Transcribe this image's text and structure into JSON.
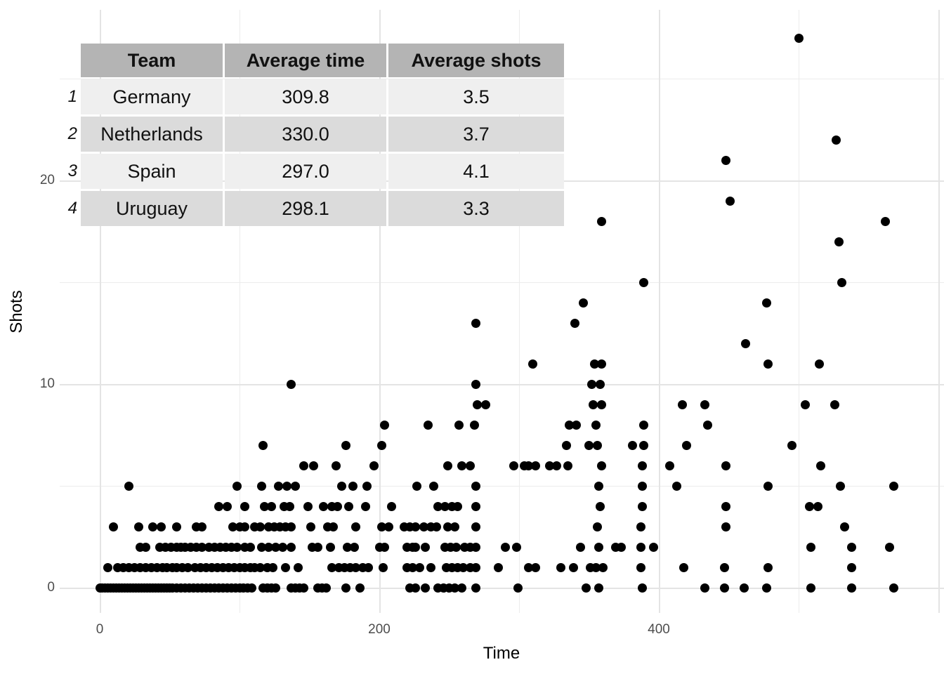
{
  "colors": {
    "dot": "#000000",
    "gridline_major": "#e4e4e4",
    "gridline_minor": "#ececec",
    "tick_label": "#4d4d4d",
    "axis_title": "#000000",
    "table_header_bg": "#b4b4b4",
    "table_row_light": "#efefef",
    "table_row_dark": "#dbdbdb",
    "background": "#ffffff"
  },
  "table": {
    "columns": [
      "Team",
      "Average time",
      "Average shots"
    ],
    "rows": [
      {
        "index": "1",
        "cells": [
          "Germany",
          "309.8",
          "3.5"
        ]
      },
      {
        "index": "2",
        "cells": [
          "Netherlands",
          "330.0",
          "3.7"
        ]
      },
      {
        "index": "3",
        "cells": [
          "Spain",
          "297.0",
          "4.1"
        ]
      },
      {
        "index": "4",
        "cells": [
          "Uruguay",
          "298.1",
          "3.3"
        ]
      }
    ]
  },
  "chart_data": {
    "type": "scatter",
    "title": "",
    "xlabel": "Time",
    "ylabel": "Shots",
    "x_major_ticks": [
      0,
      200,
      400
    ],
    "x_major_gridlines": [
      0,
      200,
      400,
      600
    ],
    "x_minor_gridlines": [
      100,
      300,
      500
    ],
    "y_major_ticks": [
      0,
      10,
      20
    ],
    "y_major_gridlines": [
      0,
      10,
      20
    ],
    "y_minor_gridlines": [
      5,
      15,
      25
    ],
    "xlim": [
      -28,
      604
    ],
    "ylim": [
      -1.2,
      28.3
    ],
    "grid": true,
    "legend": false,
    "points": [
      [
        0,
        0
      ],
      [
        2,
        0
      ],
      [
        4,
        0
      ],
      [
        6,
        0
      ],
      [
        8,
        0
      ],
      [
        10,
        0
      ],
      [
        12,
        0
      ],
      [
        14,
        0
      ],
      [
        16,
        0
      ],
      [
        18,
        0
      ],
      [
        20,
        0
      ],
      [
        22,
        0
      ],
      [
        24,
        0
      ],
      [
        26,
        0
      ],
      [
        28,
        0
      ],
      [
        30,
        0
      ],
      [
        32,
        0
      ],
      [
        34,
        0
      ],
      [
        36,
        0
      ],
      [
        38,
        0
      ],
      [
        40,
        0
      ],
      [
        42,
        0
      ],
      [
        44,
        0
      ],
      [
        46,
        0
      ],
      [
        48,
        0
      ],
      [
        50,
        0
      ],
      [
        52,
        0
      ],
      [
        55,
        0
      ],
      [
        58,
        0
      ],
      [
        61,
        0
      ],
      [
        64,
        0
      ],
      [
        67,
        0
      ],
      [
        70,
        0
      ],
      [
        73,
        0
      ],
      [
        76,
        0
      ],
      [
        79,
        0
      ],
      [
        82,
        0
      ],
      [
        85,
        0
      ],
      [
        88,
        0
      ],
      [
        91,
        0
      ],
      [
        94,
        0
      ],
      [
        97,
        0
      ],
      [
        100,
        0
      ],
      [
        103,
        0
      ],
      [
        106,
        0
      ],
      [
        109,
        0
      ],
      [
        117,
        0
      ],
      [
        120,
        0
      ],
      [
        123,
        0
      ],
      [
        126,
        0
      ],
      [
        137,
        0
      ],
      [
        140,
        0
      ],
      [
        143,
        0
      ],
      [
        146,
        0
      ],
      [
        156,
        0
      ],
      [
        159,
        0
      ],
      [
        162,
        0
      ],
      [
        176,
        0
      ],
      [
        186,
        0
      ],
      [
        222,
        0
      ],
      [
        226,
        0
      ],
      [
        233,
        0
      ],
      [
        242,
        0
      ],
      [
        246,
        0
      ],
      [
        250,
        0
      ],
      [
        254,
        0
      ],
      [
        259,
        0
      ],
      [
        269,
        0
      ],
      [
        299,
        0
      ],
      [
        348,
        0
      ],
      [
        357,
        0
      ],
      [
        388,
        0
      ],
      [
        433,
        0
      ],
      [
        447,
        0
      ],
      [
        461,
        0
      ],
      [
        477,
        0
      ],
      [
        509,
        0
      ],
      [
        538,
        0
      ],
      [
        568,
        0
      ],
      [
        6,
        1
      ],
      [
        13,
        1
      ],
      [
        17,
        1
      ],
      [
        21,
        1
      ],
      [
        25,
        1
      ],
      [
        29,
        1
      ],
      [
        33,
        1
      ],
      [
        37,
        1
      ],
      [
        41,
        1
      ],
      [
        45,
        1
      ],
      [
        48,
        1
      ],
      [
        52,
        1
      ],
      [
        55,
        1
      ],
      [
        59,
        1
      ],
      [
        63,
        1
      ],
      [
        68,
        1
      ],
      [
        72,
        1
      ],
      [
        76,
        1
      ],
      [
        80,
        1
      ],
      [
        84,
        1
      ],
      [
        88,
        1
      ],
      [
        92,
        1
      ],
      [
        96,
        1
      ],
      [
        100,
        1
      ],
      [
        104,
        1
      ],
      [
        108,
        1
      ],
      [
        111,
        1
      ],
      [
        115,
        1
      ],
      [
        120,
        1
      ],
      [
        124,
        1
      ],
      [
        133,
        1
      ],
      [
        142,
        1
      ],
      [
        166,
        1
      ],
      [
        171,
        1
      ],
      [
        175,
        1
      ],
      [
        179,
        1
      ],
      [
        183,
        1
      ],
      [
        188,
        1
      ],
      [
        192,
        1
      ],
      [
        203,
        1
      ],
      [
        220,
        1
      ],
      [
        224,
        1
      ],
      [
        229,
        1
      ],
      [
        237,
        1
      ],
      [
        248,
        1
      ],
      [
        252,
        1
      ],
      [
        256,
        1
      ],
      [
        260,
        1
      ],
      [
        265,
        1
      ],
      [
        269,
        1
      ],
      [
        285,
        1
      ],
      [
        307,
        1
      ],
      [
        312,
        1
      ],
      [
        330,
        1
      ],
      [
        339,
        1
      ],
      [
        351,
        1
      ],
      [
        355,
        1
      ],
      [
        360,
        1
      ],
      [
        387,
        1
      ],
      [
        418,
        1
      ],
      [
        447,
        1
      ],
      [
        478,
        1
      ],
      [
        538,
        1
      ],
      [
        29,
        2
      ],
      [
        33,
        2
      ],
      [
        43,
        2
      ],
      [
        47,
        2
      ],
      [
        51,
        2
      ],
      [
        55,
        2
      ],
      [
        58,
        2
      ],
      [
        61,
        2
      ],
      [
        65,
        2
      ],
      [
        69,
        2
      ],
      [
        73,
        2
      ],
      [
        78,
        2
      ],
      [
        82,
        2
      ],
      [
        86,
        2
      ],
      [
        90,
        2
      ],
      [
        94,
        2
      ],
      [
        98,
        2
      ],
      [
        104,
        2
      ],
      [
        108,
        2
      ],
      [
        116,
        2
      ],
      [
        121,
        2
      ],
      [
        126,
        2
      ],
      [
        131,
        2
      ],
      [
        137,
        2
      ],
      [
        152,
        2
      ],
      [
        156,
        2
      ],
      [
        165,
        2
      ],
      [
        177,
        2
      ],
      [
        182,
        2
      ],
      [
        200,
        2
      ],
      [
        204,
        2
      ],
      [
        220,
        2
      ],
      [
        224,
        2
      ],
      [
        226,
        2
      ],
      [
        233,
        2
      ],
      [
        247,
        2
      ],
      [
        251,
        2
      ],
      [
        255,
        2
      ],
      [
        261,
        2
      ],
      [
        265,
        2
      ],
      [
        269,
        2
      ],
      [
        290,
        2
      ],
      [
        298,
        2
      ],
      [
        344,
        2
      ],
      [
        357,
        2
      ],
      [
        369,
        2
      ],
      [
        373,
        2
      ],
      [
        387,
        2
      ],
      [
        396,
        2
      ],
      [
        509,
        2
      ],
      [
        538,
        2
      ],
      [
        565,
        2
      ],
      [
        10,
        3
      ],
      [
        28,
        3
      ],
      [
        38,
        3
      ],
      [
        44,
        3
      ],
      [
        55,
        3
      ],
      [
        69,
        3
      ],
      [
        73,
        3
      ],
      [
        95,
        3
      ],
      [
        100,
        3
      ],
      [
        104,
        3
      ],
      [
        111,
        3
      ],
      [
        115,
        3
      ],
      [
        121,
        3
      ],
      [
        125,
        3
      ],
      [
        129,
        3
      ],
      [
        133,
        3
      ],
      [
        137,
        3
      ],
      [
        151,
        3
      ],
      [
        163,
        3
      ],
      [
        167,
        3
      ],
      [
        183,
        3
      ],
      [
        202,
        3
      ],
      [
        207,
        3
      ],
      [
        218,
        3
      ],
      [
        222,
        3
      ],
      [
        226,
        3
      ],
      [
        232,
        3
      ],
      [
        237,
        3
      ],
      [
        241,
        3
      ],
      [
        249,
        3
      ],
      [
        254,
        3
      ],
      [
        269,
        3
      ],
      [
        356,
        3
      ],
      [
        387,
        3
      ],
      [
        448,
        3
      ],
      [
        533,
        3
      ],
      [
        85,
        4
      ],
      [
        91,
        4
      ],
      [
        104,
        4
      ],
      [
        118,
        4
      ],
      [
        123,
        4
      ],
      [
        132,
        4
      ],
      [
        136,
        4
      ],
      [
        149,
        4
      ],
      [
        160,
        4
      ],
      [
        166,
        4
      ],
      [
        170,
        4
      ],
      [
        178,
        4
      ],
      [
        190,
        4
      ],
      [
        209,
        4
      ],
      [
        242,
        4
      ],
      [
        247,
        4
      ],
      [
        252,
        4
      ],
      [
        256,
        4
      ],
      [
        269,
        4
      ],
      [
        358,
        4
      ],
      [
        388,
        4
      ],
      [
        448,
        4
      ],
      [
        508,
        4
      ],
      [
        514,
        4
      ],
      [
        21,
        5
      ],
      [
        98,
        5
      ],
      [
        116,
        5
      ],
      [
        128,
        5
      ],
      [
        134,
        5
      ],
      [
        140,
        5
      ],
      [
        173,
        5
      ],
      [
        181,
        5
      ],
      [
        191,
        5
      ],
      [
        227,
        5
      ],
      [
        239,
        5
      ],
      [
        269,
        5
      ],
      [
        357,
        5
      ],
      [
        388,
        5
      ],
      [
        413,
        5
      ],
      [
        478,
        5
      ],
      [
        530,
        5
      ],
      [
        568,
        5
      ],
      [
        146,
        6
      ],
      [
        153,
        6
      ],
      [
        169,
        6
      ],
      [
        196,
        6
      ],
      [
        249,
        6
      ],
      [
        259,
        6
      ],
      [
        265,
        6
      ],
      [
        296,
        6
      ],
      [
        304,
        6
      ],
      [
        307,
        6
      ],
      [
        312,
        6
      ],
      [
        322,
        6
      ],
      [
        327,
        6
      ],
      [
        335,
        6
      ],
      [
        359,
        6
      ],
      [
        388,
        6
      ],
      [
        408,
        6
      ],
      [
        448,
        6
      ],
      [
        516,
        6
      ],
      [
        117,
        7
      ],
      [
        176,
        7
      ],
      [
        202,
        7
      ],
      [
        334,
        7
      ],
      [
        350,
        7
      ],
      [
        356,
        7
      ],
      [
        381,
        7
      ],
      [
        389,
        7
      ],
      [
        420,
        7
      ],
      [
        495,
        7
      ],
      [
        204,
        8
      ],
      [
        235,
        8
      ],
      [
        257,
        8
      ],
      [
        268,
        8
      ],
      [
        336,
        8
      ],
      [
        341,
        8
      ],
      [
        355,
        8
      ],
      [
        389,
        8
      ],
      [
        435,
        8
      ],
      [
        270,
        9
      ],
      [
        276,
        9
      ],
      [
        353,
        9
      ],
      [
        359,
        9
      ],
      [
        417,
        9
      ],
      [
        433,
        9
      ],
      [
        505,
        9
      ],
      [
        526,
        9
      ],
      [
        137,
        10
      ],
      [
        269,
        10
      ],
      [
        352,
        10
      ],
      [
        358,
        10
      ],
      [
        310,
        11
      ],
      [
        354,
        11
      ],
      [
        359,
        11
      ],
      [
        478,
        11
      ],
      [
        515,
        11
      ],
      [
        462,
        12
      ],
      [
        269,
        13
      ],
      [
        340,
        13
      ],
      [
        346,
        14
      ],
      [
        477,
        14
      ],
      [
        389,
        15
      ],
      [
        531,
        15
      ],
      [
        529,
        17
      ],
      [
        359,
        18
      ],
      [
        562,
        18
      ],
      [
        451,
        19
      ],
      [
        448,
        21
      ],
      [
        527,
        22
      ],
      [
        500,
        27
      ]
    ]
  }
}
